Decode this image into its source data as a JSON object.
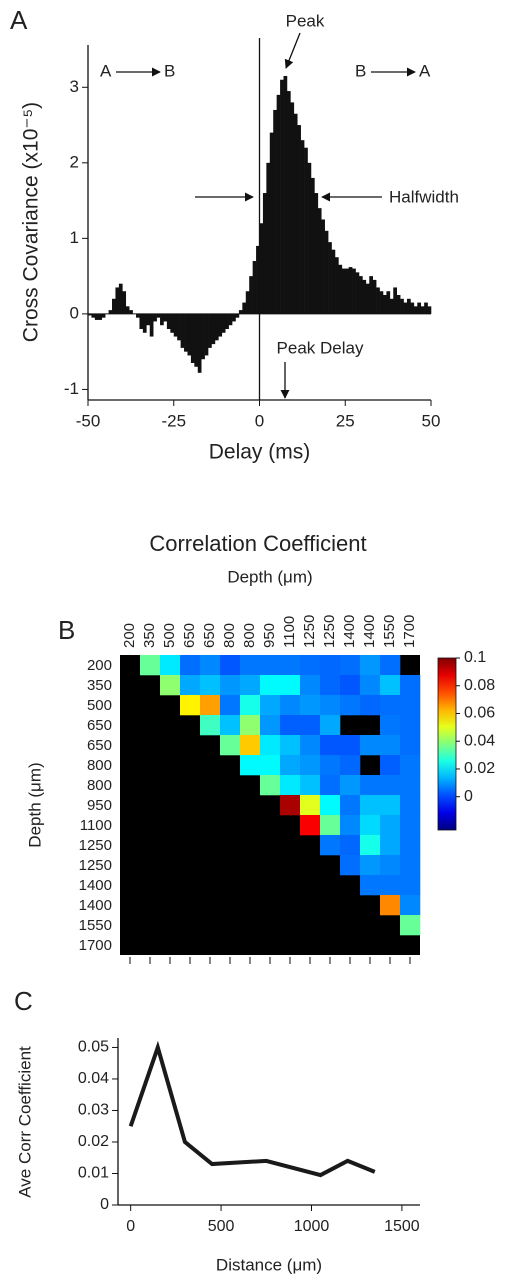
{
  "chart_data": [
    {
      "type": "histogram",
      "panel_label": "A",
      "xlabel": "Delay (ms)",
      "ylabel": "Cross Covariance (x10⁻⁵)",
      "bins": [
        -50,
        -49,
        -48,
        -47,
        -46,
        -45,
        -44,
        -43,
        -42,
        -41,
        -40,
        -39,
        -38,
        -37,
        -36,
        -35,
        -34,
        -33,
        -32,
        -31,
        -30,
        -29,
        -28,
        -27,
        -26,
        -25,
        -24,
        -23,
        -22,
        -21,
        -20,
        -19,
        -18,
        -17,
        -16,
        -15,
        -14,
        -13,
        -12,
        -11,
        -10,
        -9,
        -8,
        -7,
        -6,
        -5,
        -4,
        -3,
        -2,
        -1,
        0,
        1,
        2,
        3,
        4,
        5,
        6,
        7,
        8,
        9,
        10,
        11,
        12,
        13,
        14,
        15,
        16,
        17,
        18,
        19,
        20,
        21,
        22,
        23,
        24,
        25,
        26,
        27,
        28,
        29,
        30,
        31,
        32,
        33,
        34,
        35,
        36,
        37,
        38,
        39,
        40,
        41,
        42,
        43,
        44,
        45,
        46,
        47,
        48,
        49,
        50
      ],
      "values": [
        -0.02,
        -0.05,
        -0.08,
        -0.08,
        -0.05,
        0,
        0.05,
        0.2,
        0.35,
        0.4,
        0.3,
        0.1,
        0.05,
        0,
        -0.05,
        -0.2,
        -0.25,
        -0.15,
        -0.3,
        -0.1,
        -0.05,
        -0.15,
        -0.1,
        -0.2,
        -0.25,
        -0.3,
        -0.35,
        -0.45,
        -0.5,
        -0.55,
        -0.65,
        -0.7,
        -0.78,
        -0.6,
        -0.55,
        -0.45,
        -0.4,
        -0.35,
        -0.3,
        -0.25,
        -0.2,
        -0.15,
        -0.1,
        -0.05,
        0.05,
        0.15,
        0.3,
        0.5,
        0.7,
        0.9,
        1.2,
        1.6,
        2.0,
        2.4,
        2.7,
        2.9,
        3.1,
        3.15,
        2.95,
        2.8,
        2.65,
        2.5,
        2.3,
        2.2,
        2.0,
        1.8,
        1.6,
        1.4,
        1.25,
        1.1,
        0.95,
        0.85,
        0.75,
        0.65,
        0.6,
        0.6,
        0.62,
        0.6,
        0.55,
        0.5,
        0.45,
        0.4,
        0.5,
        0.45,
        0.35,
        0.3,
        0.25,
        0.3,
        0.2,
        0.35,
        0.25,
        0.2,
        0.15,
        0.2,
        0.15,
        0.1,
        0.15,
        0.1,
        0.15,
        0.1
      ],
      "color": "#111111",
      "zero_line": true,
      "xlim": [
        -50,
        50
      ],
      "xticks": [
        -50,
        -25,
        0,
        25,
        50
      ],
      "ylim": [
        -1.14,
        3.56
      ],
      "yticks": [
        -1,
        0,
        1,
        2,
        3
      ],
      "annotations": [
        {
          "text": "Peak"
        },
        {
          "text": "Halfwidth"
        },
        {
          "text": "Peak Delay"
        }
      ],
      "direction_labels": [
        {
          "from": "A",
          "to": "B"
        },
        {
          "from": "B",
          "to": "A"
        }
      ]
    },
    {
      "type": "heatmap",
      "panel_label": "B",
      "title": "Correlation Coefficient",
      "xlabel": "Depth (μm)",
      "ylabel": "Depth (μm)",
      "colormap": "jet",
      "missing_color": "#000000",
      "x_categories": [
        "200",
        "350",
        "500",
        "650",
        "650",
        "800",
        "800",
        "950",
        "1100",
        "1250",
        "1250",
        "1400",
        "1400",
        "1550",
        "1700"
      ],
      "y_categories": [
        "200",
        "350",
        "500",
        "650",
        "650",
        "800",
        "800",
        "950",
        "1100",
        "1250",
        "1250",
        "1400",
        "1400",
        "1550",
        "1700"
      ],
      "values": [
        [
          null,
          0.035,
          0.02,
          0.005,
          0.008,
          0.002,
          0.006,
          0.006,
          0.006,
          0.005,
          0.004,
          0.005,
          0.01,
          0.005,
          null
        ],
        [
          null,
          null,
          0.04,
          0.012,
          0.015,
          0.01,
          0.012,
          0.022,
          0.022,
          0.008,
          0.004,
          0.002,
          0.008,
          0.015,
          0.005
        ],
        [
          null,
          null,
          null,
          0.055,
          0.065,
          0.006,
          0.025,
          0.012,
          0.008,
          0.01,
          0.008,
          0.006,
          0.004,
          0.005,
          0.005
        ],
        [
          null,
          null,
          null,
          null,
          0.03,
          0.015,
          0.04,
          0.01,
          0.003,
          0.003,
          0.012,
          null,
          null,
          0.006,
          0.005
        ],
        [
          null,
          null,
          null,
          null,
          null,
          0.035,
          0.06,
          0.02,
          0.015,
          0.008,
          0.002,
          0.002,
          0.008,
          0.008,
          0.005
        ],
        [
          null,
          null,
          null,
          null,
          null,
          null,
          0.022,
          0.022,
          0.012,
          0.01,
          0.006,
          0.004,
          null,
          0.003,
          0.006
        ],
        [
          null,
          null,
          null,
          null,
          null,
          null,
          null,
          0.035,
          0.02,
          0.015,
          0.005,
          0.01,
          0.006,
          0.006,
          0.006
        ],
        [
          null,
          null,
          null,
          null,
          null,
          null,
          null,
          null,
          0.095,
          0.05,
          0.022,
          0.006,
          0.015,
          0.015,
          0.006
        ],
        [
          null,
          null,
          null,
          null,
          null,
          null,
          null,
          null,
          null,
          0.085,
          0.035,
          0.008,
          0.018,
          0.012,
          0.006
        ],
        [
          null,
          null,
          null,
          null,
          null,
          null,
          null,
          null,
          null,
          null,
          0.006,
          0.004,
          0.025,
          0.012,
          0.006
        ],
        [
          null,
          null,
          null,
          null,
          null,
          null,
          null,
          null,
          null,
          null,
          null,
          0.005,
          0.01,
          0.008,
          0.006
        ],
        [
          null,
          null,
          null,
          null,
          null,
          null,
          null,
          null,
          null,
          null,
          null,
          null,
          0.006,
          0.006,
          0.006
        ],
        [
          null,
          null,
          null,
          null,
          null,
          null,
          null,
          null,
          null,
          null,
          null,
          null,
          null,
          0.068,
          0.008
        ],
        [
          null,
          null,
          null,
          null,
          null,
          null,
          null,
          null,
          null,
          null,
          null,
          null,
          null,
          null,
          0.035
        ],
        [
          null,
          null,
          null,
          null,
          null,
          null,
          null,
          null,
          null,
          null,
          null,
          null,
          null,
          null,
          null
        ]
      ],
      "zlim": [
        -0.024,
        0.1
      ],
      "colorbar_ticks": [
        0,
        0.02,
        0.04,
        0.06,
        0.08,
        0.1
      ]
    },
    {
      "type": "line",
      "panel_label": "C",
      "xlabel": "Distance (μm)",
      "ylabel": "Ave Corr Coefficient",
      "x": [
        0,
        150,
        300,
        450,
        750,
        1050,
        1200,
        1350
      ],
      "values": [
        0.025,
        0.05,
        0.02,
        0.013,
        0.014,
        0.0095,
        0.014,
        0.0105
      ],
      "color": "#1a1a1a",
      "xlim": [
        -70,
        1600
      ],
      "xticks": [
        0,
        500,
        1000,
        1500
      ],
      "ylim": [
        0,
        0.053
      ],
      "yticks": [
        0,
        0.01,
        0.02,
        0.03,
        0.04,
        0.05
      ]
    }
  ]
}
